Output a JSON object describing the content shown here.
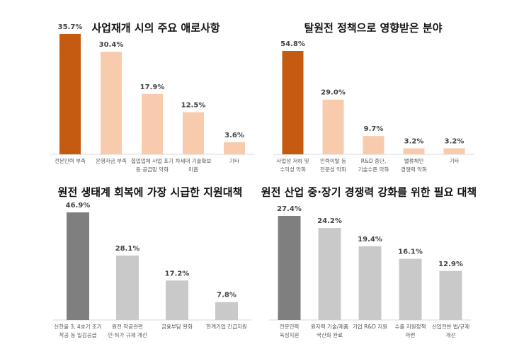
{
  "chart_data": [
    {
      "type": "bar",
      "title": "사업재개 시의 주요 애로사항",
      "categories": [
        [
          "전문인력 부족"
        ],
        [
          "운영자금 부족"
        ],
        [
          "협업업체 사업 포기",
          "등 공급망 악화"
        ],
        [
          "차세대 기술확보",
          "미흡"
        ],
        [
          "기타"
        ]
      ],
      "values": [
        35.7,
        30.4,
        17.9,
        12.5,
        3.6
      ],
      "value_labels": [
        "35.7%",
        "30.4%",
        "17.9%",
        "12.5%",
        "3.6%"
      ],
      "colors": [
        "#c55a11",
        "#f8cbad",
        "#f8cbad",
        "#f8cbad",
        "#f8cbad"
      ]
    },
    {
      "type": "bar",
      "title": "탈원전 정책으로 영향받은 분야",
      "categories": [
        [
          "사업성 저하 및",
          "수익성 악화"
        ],
        [
          "인력이탈 등",
          "전문성 악화"
        ],
        [
          "R&D 중단,",
          "기술수준 악화"
        ],
        [
          "밸류체인",
          "경쟁력 악화"
        ],
        [
          "기타"
        ]
      ],
      "values": [
        54.8,
        29.0,
        9.7,
        3.2,
        3.2
      ],
      "value_labels": [
        "54.8%",
        "29.0%",
        "9.7%",
        "3.2%",
        "3.2%"
      ],
      "colors": [
        "#c55a11",
        "#f8cbad",
        "#f8cbad",
        "#f8cbad",
        "#f8cbad"
      ]
    },
    {
      "type": "bar",
      "title": "원전 생태계 회복에 가장 시급한 지원대책",
      "categories": [
        [
          "신한울 3, 4호기 조기",
          "착공 등 일감공급"
        ],
        [
          "원전 착공관련",
          "인·허가 규제 개선"
        ],
        [
          "금융부담 완화"
        ],
        [
          "한계기업 긴급지원"
        ]
      ],
      "values": [
        46.9,
        28.1,
        17.2,
        7.8
      ],
      "value_labels": [
        "46.9%",
        "28.1%",
        "17.2%",
        "7.8%"
      ],
      "colors": [
        "#7f7f7f",
        "#c9c9c9",
        "#c9c9c9",
        "#c9c9c9"
      ]
    },
    {
      "type": "bar",
      "title": "원전 산업 중·장기 경쟁력 강화를 위한 필요 대책",
      "categories": [
        [
          "전문인력",
          "육성지원"
        ],
        [
          "원자력 기술/제품",
          "국산화 완료"
        ],
        [
          "기업 R&D 지원"
        ],
        [
          "수출 지원정책",
          "마련"
        ],
        [
          "산업전반 법/규제",
          "개선"
        ]
      ],
      "values": [
        27.4,
        24.2,
        19.4,
        16.1,
        12.9
      ],
      "value_labels": [
        "27.4%",
        "24.2%",
        "19.4%",
        "16.1%",
        "12.9%"
      ],
      "colors": [
        "#7f7f7f",
        "#c9c9c9",
        "#c9c9c9",
        "#c9c9c9",
        "#c9c9c9"
      ]
    }
  ]
}
